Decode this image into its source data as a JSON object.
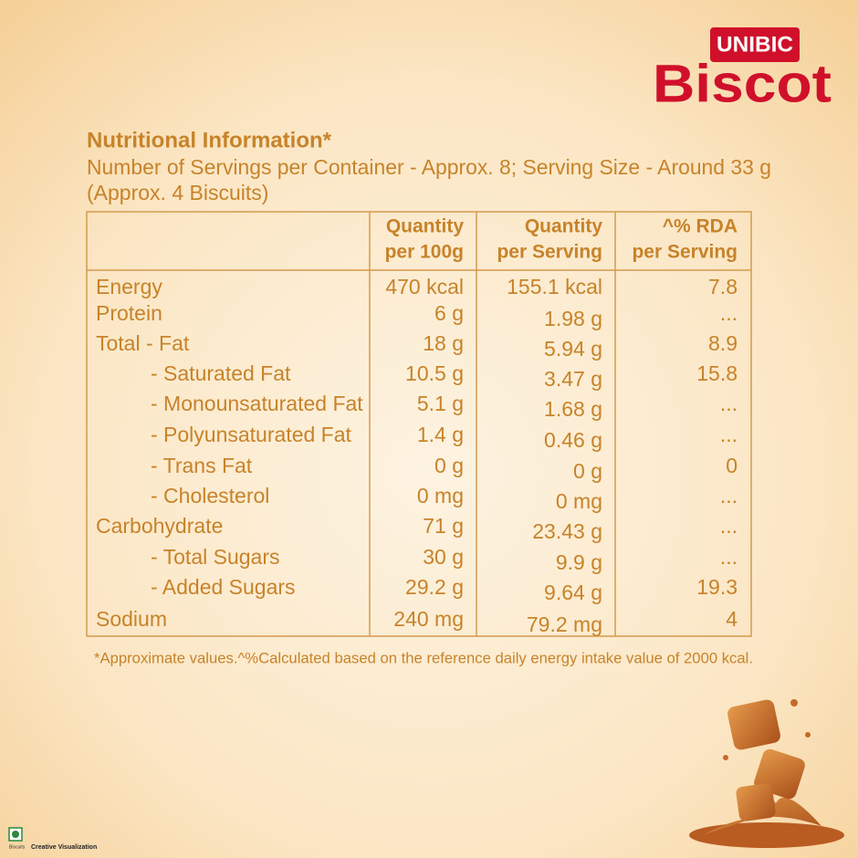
{
  "brand": {
    "maker": "UNIBIC",
    "name": "Biscot"
  },
  "title": "Nutritional Information*",
  "subtitle": [
    "Number of Servings per Container - Approx. 8; Serving Size - Around 33 g",
    "(Approx. 4 Biscuits)"
  ],
  "table": {
    "header": [
      [
        "Quantity",
        "per 100g"
      ],
      [
        "Quantity",
        "per Serving"
      ],
      [
        "^% RDA",
        "per Serving"
      ]
    ],
    "rows": [
      [
        "Energy",
        "470 kcal",
        "155.1 kcal",
        "7.8"
      ],
      [
        "Protein",
        "6 g",
        "1.98 g",
        "..."
      ],
      [
        "Total -  Fat",
        "18 g",
        "5.94 g",
        "8.9"
      ],
      [
        "- Saturated Fat",
        "10.5 g",
        "3.47 g",
        "15.8"
      ],
      [
        "- Monounsaturated Fat",
        "5.1 g",
        "1.68 g",
        "..."
      ],
      [
        "- Polyunsaturated Fat",
        "1.4 g",
        "0.46 g",
        "..."
      ],
      [
        "- Trans Fat",
        "0 g",
        "0 g",
        "0"
      ],
      [
        "- Cholesterol",
        "0 mg",
        "0 mg",
        "..."
      ],
      [
        "Carbohydrate",
        "71 g",
        "23.43 g",
        "..."
      ],
      [
        "- Total Sugars",
        "30 g",
        "9.9 g",
        "..."
      ],
      [
        "- Added Sugars",
        "29.2 g",
        "9.64 g",
        "19.3"
      ],
      [
        "Sodium",
        "240 mg",
        "79.2 mg",
        "4"
      ]
    ]
  },
  "footnote": "*Approximate values.^%Calculated based on the reference daily energy intake value of 2000 kcal.",
  "corner": {
    "mark": "Biscuits",
    "note": "Creative Visualization"
  }
}
